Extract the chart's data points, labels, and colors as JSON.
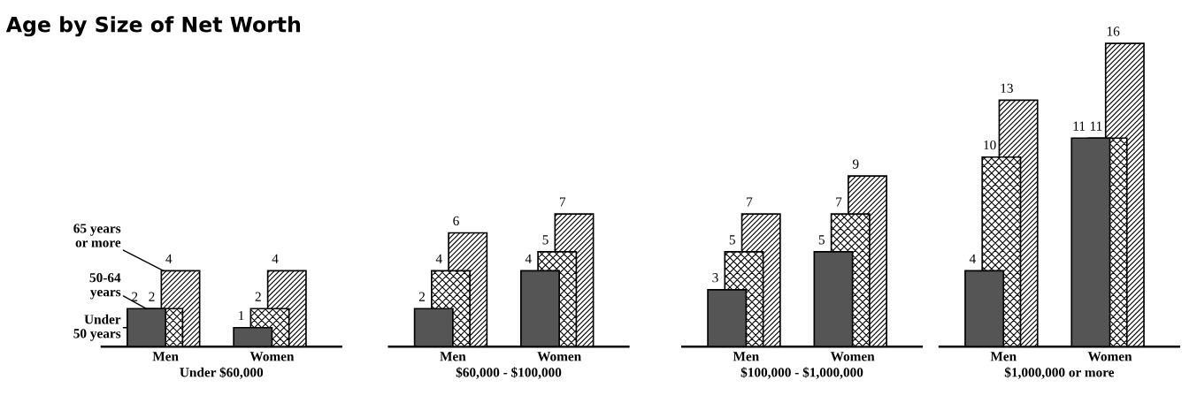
{
  "chart_data": [
    {
      "type": "bar",
      "title": "Age by Size of Net Worth",
      "xlabel": "Under $60,000",
      "categories": [
        "Men",
        "Women"
      ],
      "tick_labels": "x",
      "data_labels": true,
      "legend": "left",
      "series": [
        {
          "name": "Under\n50 years",
          "color": "#555555",
          "values": [
            2,
            1
          ]
        },
        {
          "name": "50-64\nyears",
          "color": "#000000",
          "values": [
            2,
            2
          ]
        },
        {
          "name": "65 years\nor more",
          "color": "#000000",
          "values": [
            4,
            4
          ]
        }
      ]
    },
    {
      "type": "bar",
      "xlabel": "$60,000 - $100,000",
      "categories": [
        "Men",
        "Women"
      ],
      "tick_labels": "x",
      "data_labels": true,
      "series": [
        {
          "color": "#555555",
          "values": [
            2,
            4
          ]
        },
        {
          "color": "#000000",
          "values": [
            4,
            5
          ]
        },
        {
          "color": "#000000",
          "values": [
            6,
            7
          ]
        }
      ]
    },
    {
      "type": "bar",
      "xlabel": "$100,000 - $1,000,000",
      "categories": [
        "Men",
        "Women"
      ],
      "tick_labels": "x",
      "data_labels": true,
      "series": [
        {
          "color": "#555555",
          "values": [
            3,
            5
          ]
        },
        {
          "color": "#000000",
          "values": [
            5,
            7
          ]
        },
        {
          "color": "#000000",
          "values": [
            7,
            9
          ]
        }
      ]
    },
    {
      "type": "bar",
      "xlabel": "$1,000,000 or more",
      "categories": [
        "Men",
        "Women"
      ],
      "tick_labels": "x",
      "data_labels": true,
      "series": [
        {
          "color": "#555555",
          "values": [
            4,
            11
          ]
        },
        {
          "color": "#000000",
          "values": [
            10,
            11
          ]
        },
        {
          "color": "#000000",
          "values": [
            13,
            16
          ]
        }
      ]
    }
  ]
}
